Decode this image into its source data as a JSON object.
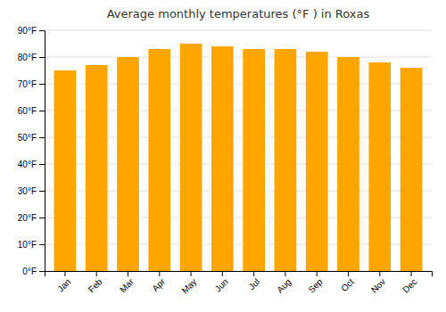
{
  "chart_data": {
    "type": "bar",
    "title": "Average monthly temperatures (°F ) in Roxas",
    "categories": [
      "Jan",
      "Feb",
      "Mar",
      "Apr",
      "May",
      "Jun",
      "Jul",
      "Aug",
      "Sep",
      "Oct",
      "Nov",
      "Dec"
    ],
    "values": [
      75,
      77,
      80,
      83,
      85,
      84,
      83,
      83,
      82,
      80,
      78,
      76
    ],
    "color": "#FFA500",
    "ylim": [
      0,
      90
    ],
    "yticks": [
      {
        "value": 0,
        "label": "0°F"
      },
      {
        "value": 10,
        "label": "10°F"
      },
      {
        "value": 20,
        "label": "20°F"
      },
      {
        "value": 30,
        "label": "30°F"
      },
      {
        "value": 40,
        "label": "40°F"
      },
      {
        "value": 50,
        "label": "50°F"
      },
      {
        "value": 60,
        "label": "60°F"
      },
      {
        "value": 70,
        "label": "70°F"
      },
      {
        "value": 80,
        "label": "80°F"
      },
      {
        "value": 90,
        "label": "90°F"
      }
    ],
    "grid": true
  }
}
